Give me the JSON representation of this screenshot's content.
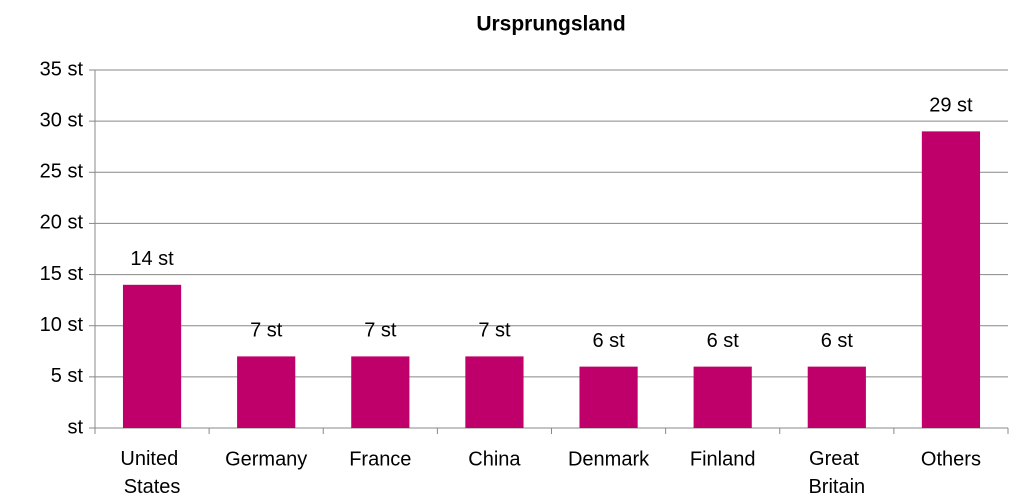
{
  "chart_data": {
    "type": "bar",
    "title": "Ursprungsland",
    "categories": [
      "United States",
      "Germany",
      "France",
      "China",
      "Denmark",
      "Finland",
      "Great Britain",
      "Others"
    ],
    "values": [
      14,
      7,
      7,
      7,
      6,
      6,
      6,
      29
    ],
    "value_labels": [
      "14 st",
      "7 st",
      "7 st",
      "7 st",
      "6 st",
      "6 st",
      "6 st",
      "29 st"
    ],
    "color": "#c0006a",
    "ylim": [
      0,
      35
    ],
    "yticks": [
      {
        "value": 0,
        "label": "st"
      },
      {
        "value": 5,
        "label": "5 st"
      },
      {
        "value": 10,
        "label": "10 st"
      },
      {
        "value": 15,
        "label": "15 st"
      },
      {
        "value": 20,
        "label": "20 st"
      },
      {
        "value": 25,
        "label": "25 st"
      },
      {
        "value": 30,
        "label": "30 st"
      },
      {
        "value": 35,
        "label": "35 st"
      }
    ],
    "grid": true
  }
}
